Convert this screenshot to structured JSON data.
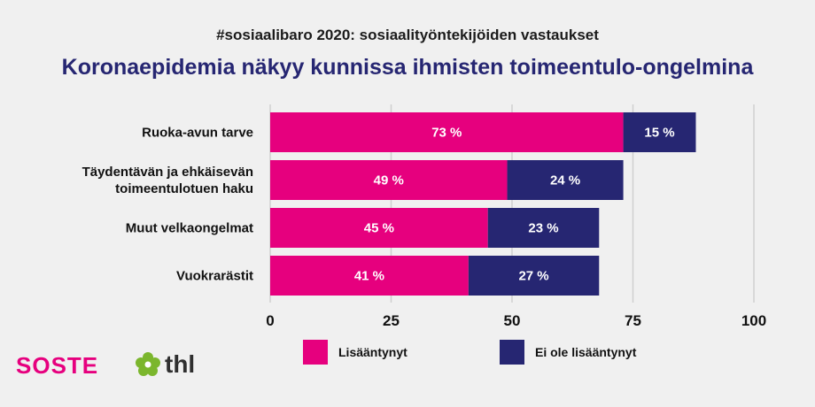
{
  "header": {
    "subtitle": "#sosiaalibaro 2020: sosiaalityöntekijöiden vastaukset",
    "title": "Koronaepidemia näkyy kunnissa ihmisten toimeentulo-ongelmina"
  },
  "colors": {
    "increased": "#e6007e",
    "not_increased": "#262672",
    "grid": "#cfcfcf"
  },
  "chart_data": {
    "type": "bar",
    "orientation": "horizontal",
    "stacked": true,
    "categories": [
      [
        "Ruoka-avun tarve"
      ],
      [
        "Täydentävän ja ehkäisevän",
        "toimeentulotuen haku"
      ],
      [
        "Muut velkaongelmat"
      ],
      [
        "Vuokrarästit"
      ]
    ],
    "series": [
      {
        "name": "Lisääntynyt",
        "values": [
          73,
          49,
          45,
          41
        ],
        "labels": [
          "73 %",
          "49 %",
          "45 %",
          "41 %"
        ]
      },
      {
        "name": "Ei ole lisääntynyt",
        "values": [
          15,
          24,
          23,
          27
        ],
        "labels": [
          "15 %",
          "24 %",
          "23 %",
          "27 %"
        ]
      }
    ],
    "xlim": [
      0,
      100
    ],
    "xticks": [
      "0",
      "25",
      "50",
      "75",
      "100"
    ],
    "legend_position": "bottom",
    "grid": true
  },
  "logos": {
    "soste": "SOSTE",
    "thl": "thl"
  }
}
